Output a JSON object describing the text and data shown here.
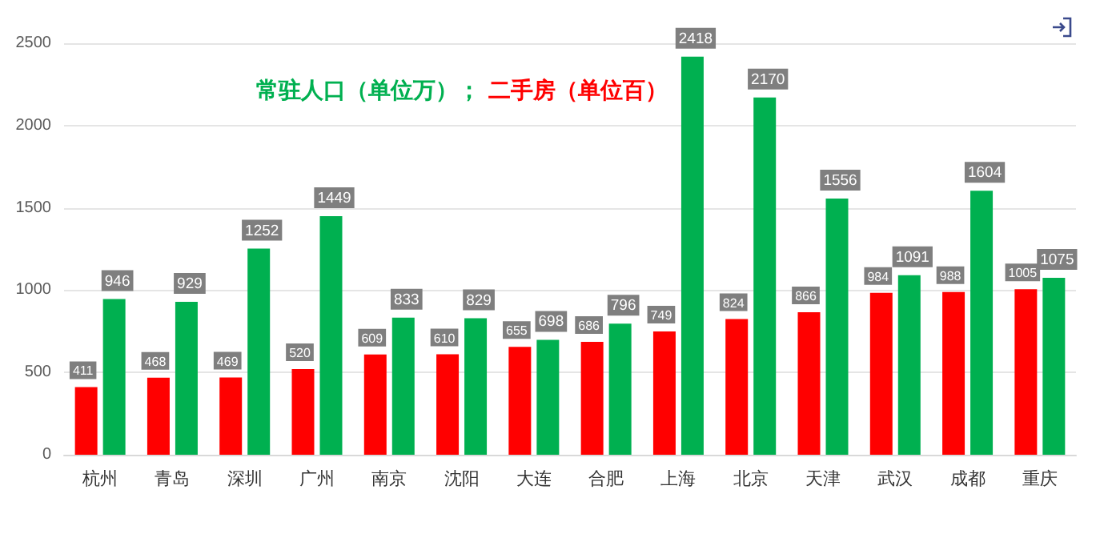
{
  "chart_data": {
    "type": "bar",
    "categories": [
      "杭州",
      "青岛",
      "深圳",
      "广州",
      "南京",
      "沈阳",
      "大连",
      "合肥",
      "上海",
      "北京",
      "天津",
      "武汉",
      "成都",
      "重庆"
    ],
    "series": [
      {
        "name": "二手房（单位百）",
        "color": "#ff0000",
        "values": [
          411,
          468,
          469,
          520,
          609,
          610,
          655,
          686,
          749,
          824,
          866,
          984,
          988,
          1005
        ]
      },
      {
        "name": "常驻人口（单位万）；",
        "color": "#00b050",
        "values": [
          946,
          929,
          1252,
          1449,
          833,
          829,
          698,
          796,
          2418,
          2170,
          1556,
          1091,
          1604,
          1075
        ]
      }
    ],
    "ylim": [
      0,
      2500
    ],
    "yticks": [
      0,
      500,
      1000,
      1500,
      2000,
      2500
    ],
    "grid": "y",
    "legend": "top",
    "data_labels": true
  }
}
